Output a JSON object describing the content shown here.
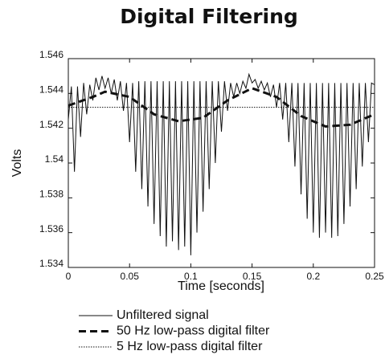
{
  "chart_data": {
    "type": "line",
    "title": "Digital Filtering",
    "x_label": "Time [seconds]",
    "y_label": "Volts",
    "xlim": [
      0,
      0.25
    ],
    "xticks": [
      0,
      0.05,
      0.1,
      0.15,
      0.2,
      0.25
    ],
    "ylim": [
      1.534,
      1.546
    ],
    "yticks": [
      1.534,
      1.536,
      1.538,
      1.54,
      1.542,
      1.544,
      1.546
    ],
    "x": [
      0,
      0.0025,
      0.005,
      0.0075,
      0.01,
      0.0125,
      0.015,
      0.0175,
      0.02,
      0.0225,
      0.025,
      0.0275,
      0.03,
      0.0325,
      0.035,
      0.0375,
      0.04,
      0.0425,
      0.045,
      0.0475,
      0.05,
      0.0525,
      0.055,
      0.0575,
      0.06,
      0.0625,
      0.065,
      0.0675,
      0.07,
      0.0725,
      0.075,
      0.0775,
      0.08,
      0.0825,
      0.085,
      0.0875,
      0.09,
      0.0925,
      0.095,
      0.0975,
      0.1,
      0.1025,
      0.105,
      0.1075,
      0.11,
      0.1125,
      0.115,
      0.1175,
      0.12,
      0.1225,
      0.125,
      0.1275,
      0.13,
      0.1325,
      0.135,
      0.1375,
      0.14,
      0.1425,
      0.145,
      0.1475,
      0.15,
      0.1525,
      0.155,
      0.1575,
      0.16,
      0.1625,
      0.165,
      0.1675,
      0.17,
      0.1725,
      0.175,
      0.1775,
      0.18,
      0.1825,
      0.185,
      0.1875,
      0.19,
      0.1925,
      0.195,
      0.1975,
      0.2,
      0.2025,
      0.205,
      0.2075,
      0.21,
      0.2125,
      0.215,
      0.2175,
      0.22,
      0.2225,
      0.225,
      0.2275,
      0.23,
      0.2325,
      0.235,
      0.2375,
      0.24,
      0.2425,
      0.245,
      0.2475,
      0.25
    ],
    "series": [
      {
        "name": "Unfiltered signal",
        "color": "#111111",
        "dash": "none",
        "values": [
          1.5425,
          1.5444,
          1.5395,
          1.5444,
          1.5415,
          1.5446,
          1.5428,
          1.5445,
          1.5436,
          1.5449,
          1.5442,
          1.545,
          1.5443,
          1.5449,
          1.544,
          1.5448,
          1.5436,
          1.5447,
          1.543,
          1.5446,
          1.5412,
          1.5446,
          1.5395,
          1.5447,
          1.5385,
          1.5447,
          1.5375,
          1.5447,
          1.5365,
          1.5447,
          1.5358,
          1.5447,
          1.5352,
          1.5447,
          1.5355,
          1.5447,
          1.535,
          1.5447,
          1.5352,
          1.5447,
          1.5347,
          1.5447,
          1.536,
          1.5447,
          1.5372,
          1.5447,
          1.5385,
          1.5447,
          1.54,
          1.5447,
          1.5418,
          1.5447,
          1.543,
          1.5446,
          1.5438,
          1.5446,
          1.544,
          1.5447,
          1.5443,
          1.5451,
          1.5446,
          1.5448,
          1.5443,
          1.5447,
          1.5442,
          1.5446,
          1.5438,
          1.5445,
          1.5432,
          1.5446,
          1.5425,
          1.5446,
          1.5412,
          1.5446,
          1.5398,
          1.5446,
          1.5382,
          1.5446,
          1.5368,
          1.5446,
          1.536,
          1.5446,
          1.5357,
          1.5446,
          1.536,
          1.5446,
          1.5357,
          1.5446,
          1.5358,
          1.5446,
          1.5365,
          1.5446,
          1.5375,
          1.5446,
          1.5385,
          1.5446,
          1.5398,
          1.5446,
          1.5412,
          1.5446,
          1.5445
        ]
      },
      {
        "name": "50 Hz low-pass digital filter",
        "color": "#111111",
        "dash": "dashed",
        "x": [
          0,
          0.02,
          0.03,
          0.05,
          0.07,
          0.09,
          0.11,
          0.13,
          0.15,
          0.17,
          0.19,
          0.21,
          0.23,
          0.25
        ],
        "values": [
          1.5433,
          1.5438,
          1.5441,
          1.5438,
          1.5428,
          1.5424,
          1.5426,
          1.5436,
          1.5443,
          1.5438,
          1.5427,
          1.5421,
          1.5422,
          1.5428
        ]
      },
      {
        "name": "5 Hz low-pass digital filter",
        "color": "#111111",
        "dash": "dotted",
        "x": [
          0,
          0.25
        ],
        "values": [
          1.5432,
          1.5432
        ]
      }
    ]
  }
}
